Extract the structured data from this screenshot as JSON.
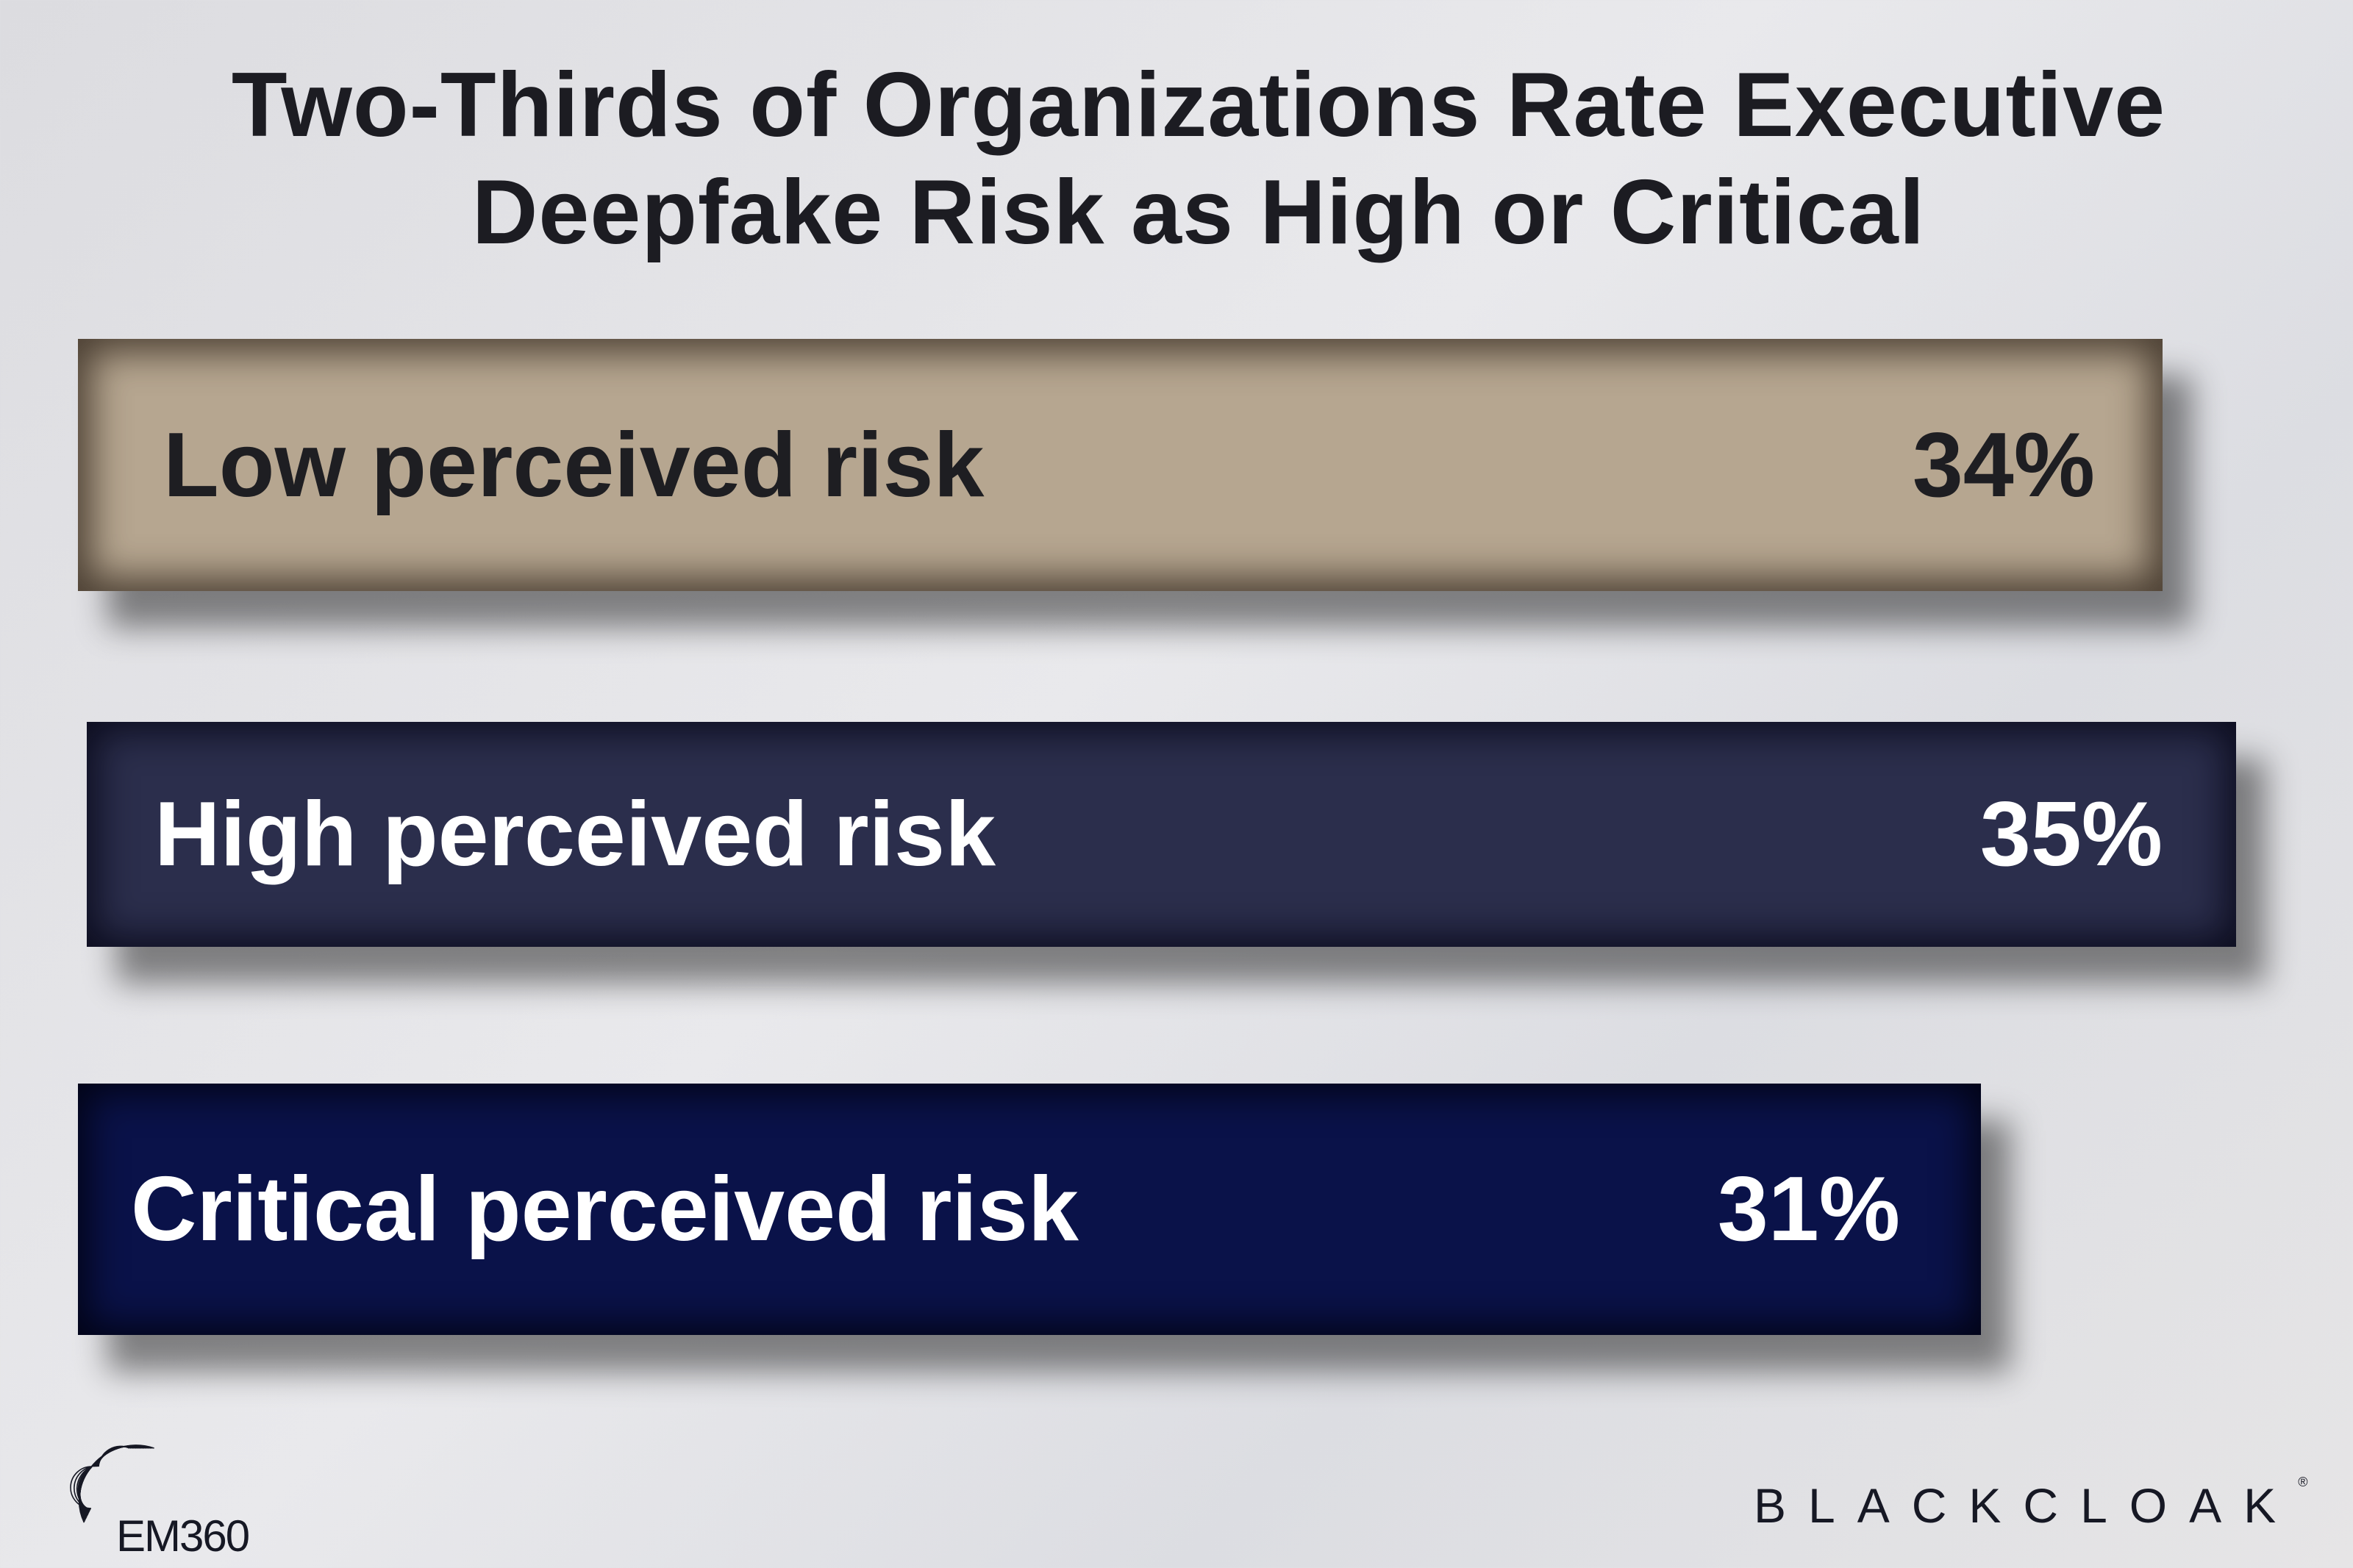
{
  "chart_data": {
    "type": "bar",
    "orientation": "horizontal",
    "title": "Two-Thirds of Organizations Rate Executive Deepfake Risk as High or Critical",
    "title_lines": [
      "Two-Thirds of Organizations Rate Executive",
      "Deepfake Risk as High or Critical"
    ],
    "categories": [
      "Low perceived risk",
      "High perceived risk",
      "Critical perceived risk"
    ],
    "values": [
      34,
      35,
      31
    ],
    "value_labels": [
      "34%",
      "35%",
      "31%"
    ],
    "unit": "%",
    "colors": [
      "#b6a690",
      "#2b2e4c",
      "#0a1249"
    ],
    "grid": false,
    "legend": "none"
  },
  "branding": {
    "left_logo": "EM360",
    "right_logo": "BLACKCLOAK",
    "right_logo_mark": "®"
  }
}
